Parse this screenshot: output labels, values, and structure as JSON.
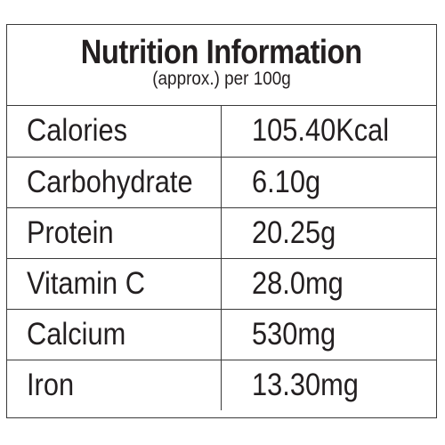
{
  "header": {
    "title": "Nutrition Information",
    "subtitle": "(approx.) per 100g"
  },
  "table": {
    "rows": [
      [
        "Calories",
        "105.40Kcal"
      ],
      [
        "Carbohydrate",
        "6.10g"
      ],
      [
        "Protein",
        "20.25g"
      ],
      [
        "Vitamin C",
        "28.0mg"
      ],
      [
        "Calcium",
        "530mg"
      ],
      [
        "Iron",
        "13.30mg"
      ]
    ]
  }
}
